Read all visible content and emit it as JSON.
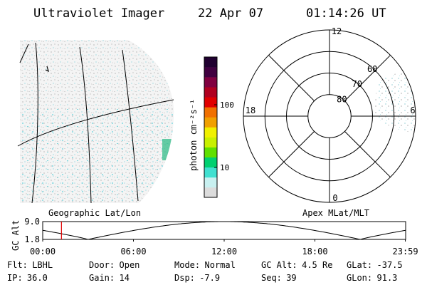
{
  "header": {
    "instrument": "Ultraviolet Imager",
    "date": "22 Apr 07",
    "time": "01:14:26 UT"
  },
  "geo_panel": {
    "caption": "Geographic Lat/Lon"
  },
  "colorbar": {
    "unit_label": "photon cm⁻²s⁻¹",
    "ticks": [
      {
        "label": "100",
        "value": 100
      },
      {
        "label": "10",
        "value": 10
      }
    ],
    "colors": [
      "#dcdcdc",
      "#c8f0f0",
      "#40e0d0",
      "#00d070",
      "#60e000",
      "#c8f000",
      "#f0f000",
      "#f0a000",
      "#f07000",
      "#e00000",
      "#b00020",
      "#800040",
      "#400040",
      "#200030"
    ]
  },
  "polar_panel": {
    "caption": "Apex MLat/MLT",
    "mlt_labels": [
      {
        "label": "12",
        "mlt": 12
      },
      {
        "label": "18",
        "mlt": 18
      },
      {
        "label": "6",
        "mlt": 6
      },
      {
        "label": "0",
        "mlt": 0
      }
    ],
    "lat_labels": [
      {
        "label": "60",
        "lat": 60
      },
      {
        "label": "70",
        "lat": 70
      },
      {
        "label": "80",
        "lat": 80
      }
    ]
  },
  "orbit_plot": {
    "ylabel": "GC Alt",
    "yticks": [
      {
        "label": "9.0",
        "value": 9.0
      },
      {
        "label": "1.8",
        "value": 1.8
      }
    ],
    "xticks": [
      {
        "label": "00:00",
        "hour": 0
      },
      {
        "label": "06:00",
        "hour": 6
      },
      {
        "label": "12:00",
        "hour": 12
      },
      {
        "label": "18:00",
        "hour": 18
      },
      {
        "label": "23:59",
        "hour": 23.98
      }
    ],
    "current_hour": 1.24,
    "marker_color": "#e00000"
  },
  "status": {
    "row1": [
      {
        "key": "Flt:",
        "value": "LBHL"
      },
      {
        "key": "Door:",
        "value": "Open"
      },
      {
        "key": "Mode:",
        "value": "Normal"
      },
      {
        "key": "GC Alt:",
        "value": "4.5 Re"
      },
      {
        "key": "GLat:",
        "value": "-37.5"
      }
    ],
    "row2": [
      {
        "key": "IP:",
        "value": "36.0"
      },
      {
        "key": "Gain:",
        "value": "14"
      },
      {
        "key": "Dsp:",
        "value": "-7.9"
      },
      {
        "key": "Seq:",
        "value": "39"
      },
      {
        "key": "GLon:",
        "value": "91.3"
      }
    ]
  }
}
